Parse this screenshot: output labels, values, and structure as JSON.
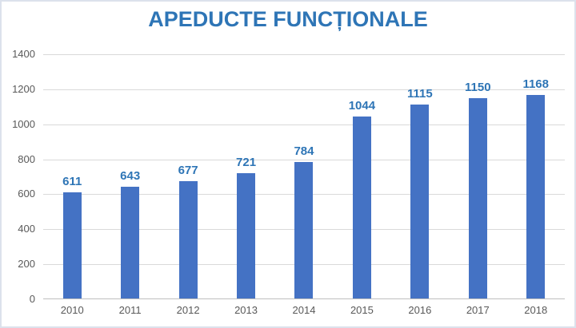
{
  "title": "APEDUCTE FUNCȚIONALE",
  "colors": {
    "bar": "#4472C4",
    "title": "#2E75B6",
    "data_label": "#2E75B6",
    "axis_text": "#595959",
    "gridline": "#D9D9D9",
    "axis_line": "#BFBFBF",
    "frame_border": "#DCE2EC",
    "background": "#FFFFFF"
  },
  "chart_data": {
    "type": "bar",
    "title": "APEDUCTE FUNCȚIONALE",
    "categories": [
      "2010",
      "2011",
      "2012",
      "2013",
      "2014",
      "2015",
      "2016",
      "2017",
      "2018"
    ],
    "values": [
      611,
      643,
      677,
      721,
      784,
      1044,
      1115,
      1150,
      1168
    ],
    "xlabel": "",
    "ylabel": "",
    "ylim": [
      0,
      1400
    ],
    "ytick_step": 200,
    "grid": true,
    "legend": false,
    "data_labels": true,
    "bar_color": "#4472C4"
  }
}
